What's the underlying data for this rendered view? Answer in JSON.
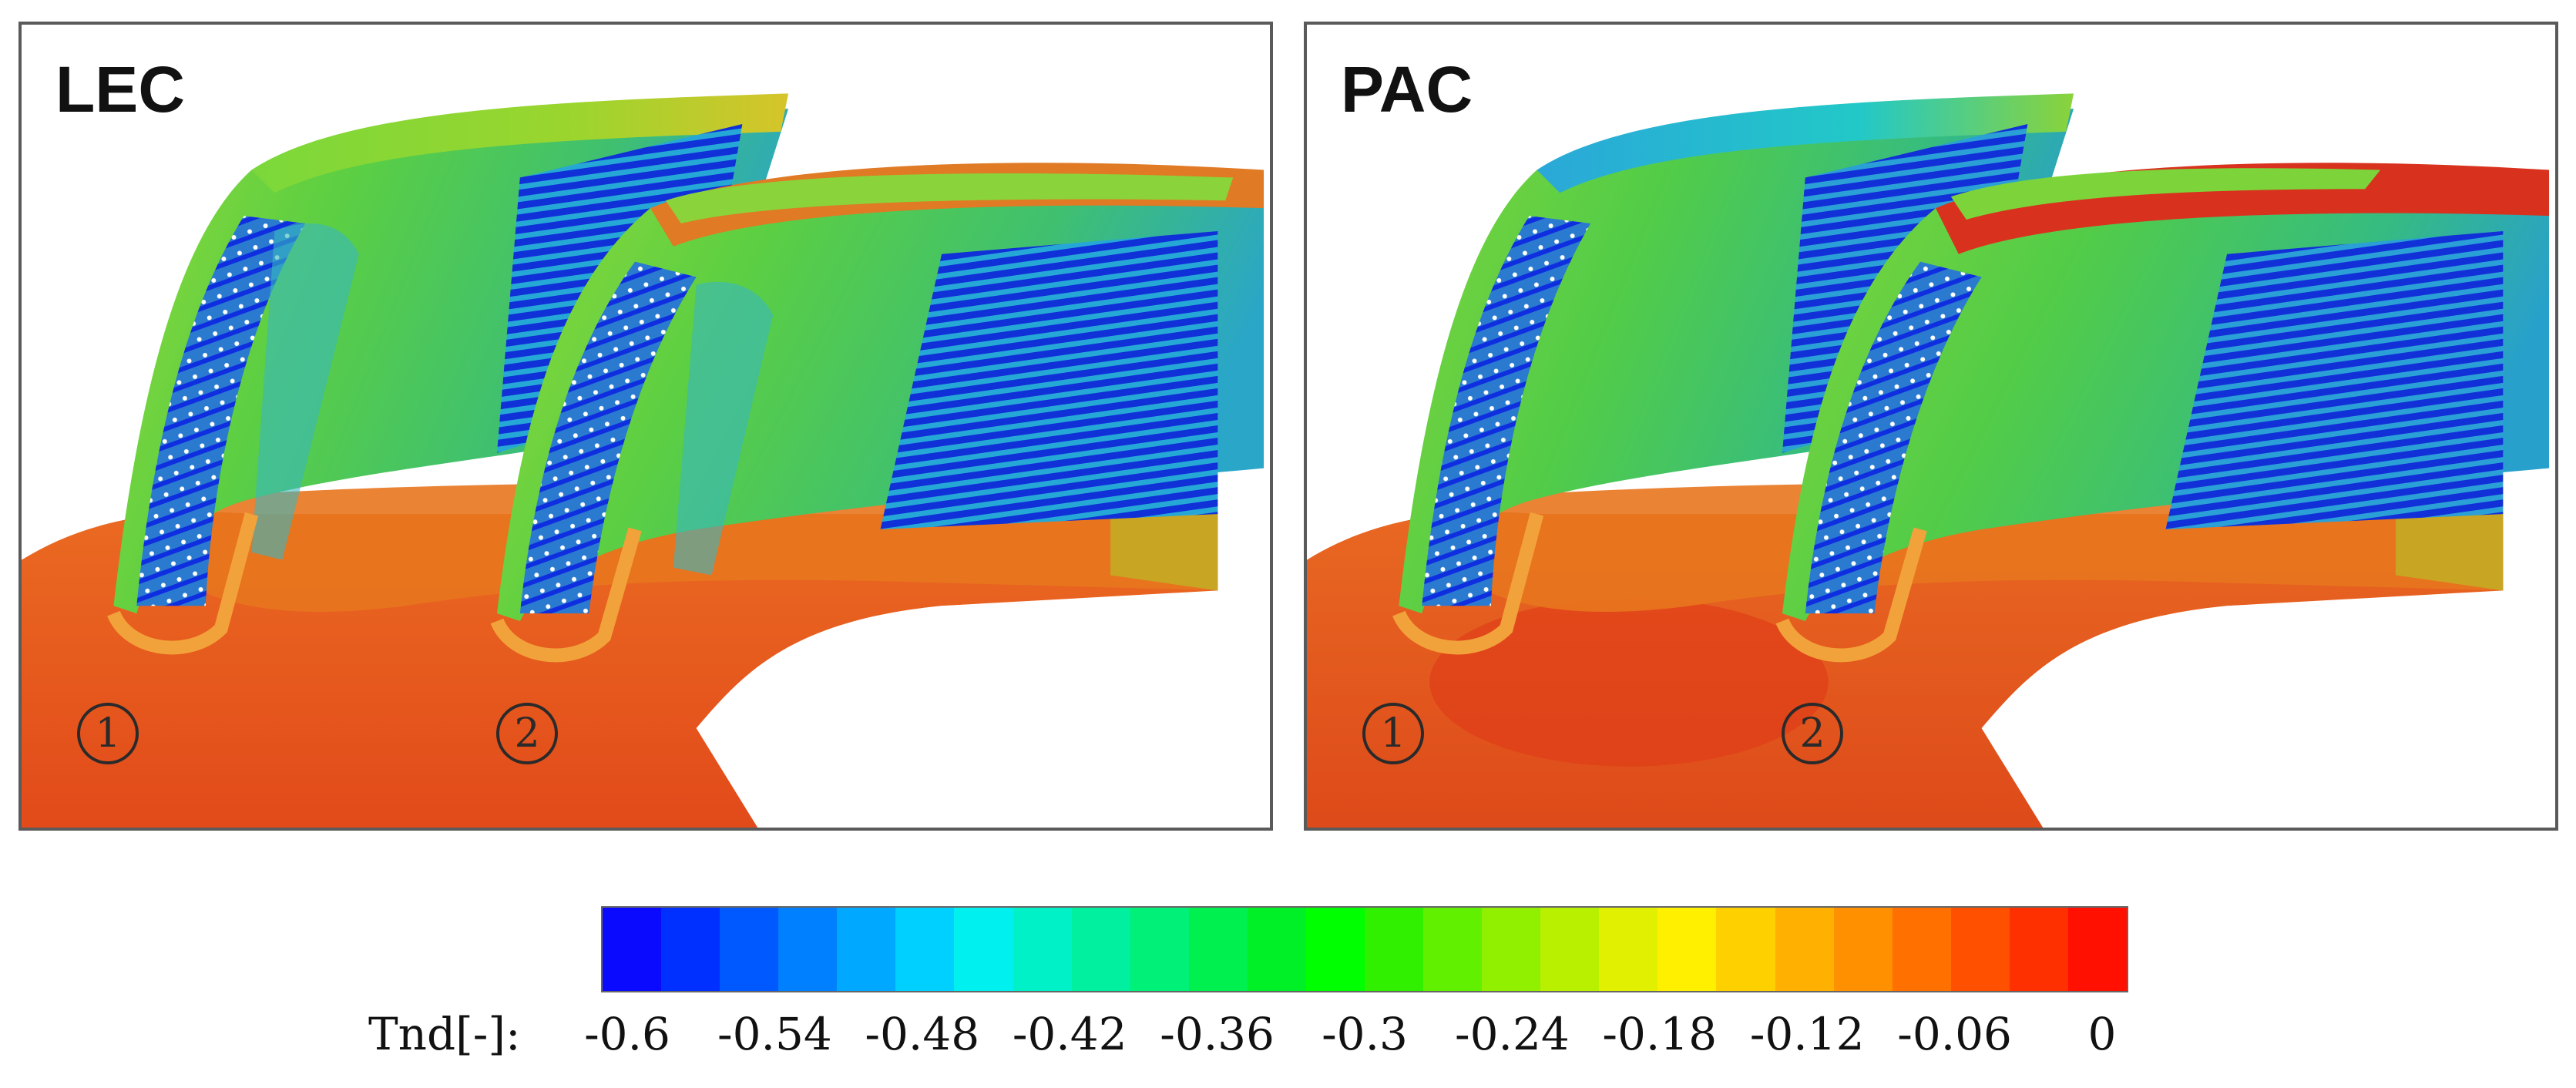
{
  "panels": [
    {
      "title": "LEC",
      "markers": [
        "1",
        "2"
      ]
    },
    {
      "title": "PAC",
      "markers": [
        "1",
        "2"
      ]
    }
  ],
  "colorbar": {
    "label": "Tnd[-]:",
    "ticks": [
      "-0.6",
      "-0.54",
      "-0.48",
      "-0.42",
      "-0.36",
      "-0.3",
      "-0.24",
      "-0.18",
      "-0.12",
      "-0.06",
      "0"
    ],
    "min": -0.6,
    "max": 0,
    "colors": [
      "#0a0aff",
      "#0030ff",
      "#0058ff",
      "#0080ff",
      "#00a8ff",
      "#00d0ff",
      "#00f0f0",
      "#00f0c8",
      "#00f0a0",
      "#00f078",
      "#00f050",
      "#00f028",
      "#00ff00",
      "#30f000",
      "#60f000",
      "#90f000",
      "#b8f000",
      "#e0f000",
      "#fff000",
      "#ffd000",
      "#ffb000",
      "#ff9000",
      "#ff7000",
      "#ff5000",
      "#ff3000",
      "#ff1000"
    ],
    "value_step": 0.024
  },
  "colors": {
    "hub_left": "#e8551e",
    "hub_right": "#e2571e",
    "blade_green": "#6cd23a",
    "blade_yellow": "#c8c62e",
    "blade_blue": "#1646d8",
    "blade_cyan": "#22b8d0",
    "edge_orange": "#e9741e",
    "frame": "#5a5a5a"
  }
}
